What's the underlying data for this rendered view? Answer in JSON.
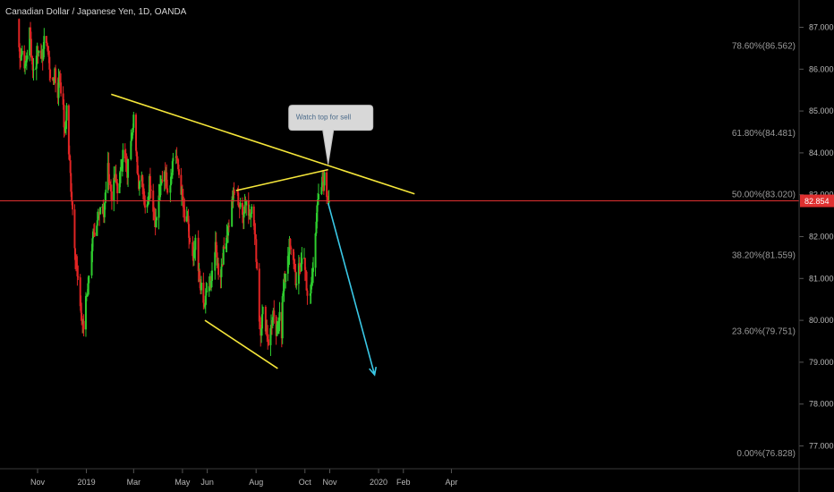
{
  "chart_data": {
    "type": "candlestick",
    "title": "Canadian Dollar / Japanese Yen, 1D, OANDA",
    "y_axis": {
      "ticks": [
        "87.000",
        "86.000",
        "85.000",
        "84.000",
        "83.000",
        "82.000",
        "81.000",
        "80.000",
        "79.000",
        "78.000",
        "77.000"
      ],
      "range": [
        76.4,
        87.4
      ]
    },
    "x_axis": {
      "ticks": [
        "Nov",
        "2019",
        "Mar",
        "May",
        "Jun",
        "Aug",
        "Oct",
        "Nov",
        "2020",
        "Feb",
        "Apr"
      ],
      "tick_dates": [
        "2018-11-01",
        "2019-01-01",
        "2019-03-01",
        "2019-05-01",
        "2019-06-01",
        "2019-08-01",
        "2019-10-01",
        "2019-11-01",
        "2020-01-01",
        "2020-02-01",
        "2020-04-01"
      ]
    },
    "current_price": {
      "label": "82.854",
      "value": 82.854,
      "color": "#e03030"
    },
    "fibonacci_levels": [
      {
        "label": "78.60%(86.562)",
        "value": 86.562
      },
      {
        "label": "61.80%(84.481)",
        "value": 84.481
      },
      {
        "label": "50.00%(83.020)",
        "value": 83.02
      },
      {
        "label": "38.20%(81.559)",
        "value": 81.559
      },
      {
        "label": "23.60%(79.751)",
        "value": 79.751
      },
      {
        "label": "0.00%(76.828)",
        "value": 76.828
      }
    ],
    "trend_lines": [
      {
        "name": "upper-trendline",
        "color": "#f5e63a",
        "from": [
          "2019-02-01",
          85.4
        ],
        "to": [
          "2020-02-15",
          83.02
        ]
      },
      {
        "name": "wedge-top-line",
        "color": "#f5e63a",
        "from": [
          "2019-07-07",
          83.1
        ],
        "to": [
          "2019-10-30",
          83.6
        ]
      },
      {
        "name": "wedge-bottom-line",
        "color": "#f5e63a",
        "from": [
          "2019-05-29",
          80.0
        ],
        "to": [
          "2019-08-28",
          78.85
        ]
      },
      {
        "name": "forecast-arrow",
        "color": "#3ac8e6",
        "from": [
          "2019-10-30",
          82.8
        ],
        "to": [
          "2019-12-27",
          78.7
        ]
      }
    ],
    "annotation": {
      "text": "Watch top for sell"
    },
    "series": [
      {
        "start": "2018-10-05",
        "end": "2018-12-01",
        "values": [
          87.2,
          86.6,
          86.3,
          86.5,
          86.0,
          86.4,
          86.9,
          86.2,
          85.8,
          86.3,
          86.6,
          86.1,
          86.5,
          86.9,
          86.4,
          85.9,
          85.6,
          86.0,
          85.2,
          85.9,
          85.4
        ]
      },
      {
        "start": "2018-12-02",
        "end": "2019-01-03",
        "values": [
          85.3,
          84.4,
          85.1,
          84.0,
          83.2,
          82.4,
          81.6,
          81.0,
          80.6,
          80.0,
          79.8,
          80.6,
          80.8
        ]
      },
      {
        "start": "2019-01-04",
        "end": "2019-03-01",
        "values": [
          81.2,
          81.6,
          82.0,
          81.8,
          82.3,
          82.7,
          82.9,
          82.5,
          83.2,
          83.6,
          83.2,
          82.9,
          83.4,
          83.3,
          82.9,
          83.7,
          84.0,
          83.8,
          83.5,
          84.2,
          84.5,
          84.9
        ]
      },
      {
        "start": "2019-03-02",
        "end": "2019-04-30",
        "values": [
          84.2,
          83.8,
          83.3,
          83.6,
          83.2,
          82.6,
          82.9,
          83.4,
          83.0,
          82.6,
          82.3,
          82.8,
          83.1,
          83.4,
          83.6,
          83.3,
          83.0,
          83.5,
          83.9,
          84.1,
          83.7,
          83.4,
          83.0
        ]
      },
      {
        "start": "2019-05-01",
        "end": "2019-06-05",
        "values": [
          82.9,
          82.3,
          82.5,
          82.0,
          81.6,
          81.4,
          81.8,
          81.2,
          81.0,
          80.6,
          80.3,
          80.6,
          80.9,
          80.7
        ]
      },
      {
        "start": "2019-06-06",
        "end": "2019-07-13",
        "values": [
          81.1,
          81.5,
          81.7,
          81.3,
          81.0,
          81.4,
          81.7,
          82.0,
          82.2,
          82.6,
          82.9,
          83.1,
          83.0,
          82.8,
          82.6
        ]
      },
      {
        "start": "2019-07-14",
        "end": "2019-08-03",
        "values": [
          82.4,
          82.7,
          82.9,
          82.5,
          82.7,
          82.5,
          81.8,
          81.0
        ]
      },
      {
        "start": "2019-08-04",
        "end": "2019-09-02",
        "values": [
          80.2,
          79.8,
          80.2,
          80.0,
          79.7,
          79.4,
          79.9,
          80.1,
          79.6,
          79.8,
          80.3,
          79.7
        ]
      },
      {
        "start": "2019-09-03",
        "end": "2019-10-02",
        "values": [
          80.5,
          81.0,
          81.5,
          81.8,
          81.5,
          81.3,
          80.8,
          81.2,
          81.4,
          81.6,
          81.2
        ]
      },
      {
        "start": "2019-10-03",
        "end": "2019-10-31",
        "values": [
          80.6,
          80.3,
          80.8,
          81.4,
          82.2,
          82.8,
          83.0,
          83.3,
          83.4,
          83.0,
          82.85
        ]
      }
    ]
  }
}
